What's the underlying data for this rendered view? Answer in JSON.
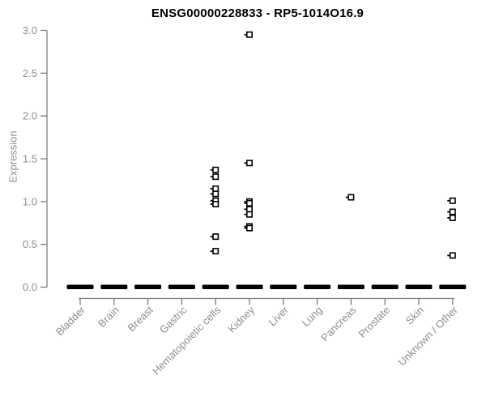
{
  "chart_data": {
    "type": "scatter",
    "title": "ENSG00000228833 - RP5-1014O16.9",
    "ylabel": "Expression",
    "xlabel": "",
    "ylim": [
      0.0,
      3.0
    ],
    "yticks": [
      "0.0",
      "0.5",
      "1.0",
      "1.5",
      "2.0",
      "2.5",
      "3.0"
    ],
    "grid": false,
    "legend": "none",
    "marker": "open-square-with-left-tick",
    "categories": [
      "Bladder",
      "Brain",
      "Breast",
      "Gastric",
      "Hematopoietic cells",
      "Kidney",
      "Liver",
      "Lung",
      "Pancreas",
      "Prostate",
      "Skin",
      "Unknown / Other"
    ],
    "series": [
      {
        "label": "Bladder",
        "values": [],
        "zero_cluster": true
      },
      {
        "label": "Brain",
        "values": [],
        "zero_cluster": true
      },
      {
        "label": "Breast",
        "values": [],
        "zero_cluster": true
      },
      {
        "label": "Gastric",
        "values": [],
        "zero_cluster": true
      },
      {
        "label": "Hematopoietic cells",
        "values": [
          1.37,
          1.29,
          1.15,
          1.09,
          1.01,
          0.97,
          0.59,
          0.42
        ],
        "zero_cluster": true
      },
      {
        "label": "Kidney",
        "values": [
          2.95,
          1.45,
          1.0,
          0.98,
          0.91,
          0.85,
          0.71,
          0.69
        ],
        "zero_cluster": true
      },
      {
        "label": "Liver",
        "values": [],
        "zero_cluster": true
      },
      {
        "label": "Lung",
        "values": [],
        "zero_cluster": true
      },
      {
        "label": "Pancreas",
        "values": [
          1.05
        ],
        "zero_cluster": true
      },
      {
        "label": "Prostate",
        "values": [],
        "zero_cluster": true
      },
      {
        "label": "Skin",
        "values": [],
        "zero_cluster": true
      },
      {
        "label": "Unknown / Other",
        "values": [
          1.01,
          0.88,
          0.81,
          0.37
        ],
        "zero_cluster": true
      }
    ],
    "colors": {
      "marker": "#000000",
      "axis": "#7f7f7f",
      "tick_label": "#8f8f8f",
      "title": "#000000",
      "background": "#ffffff"
    }
  }
}
